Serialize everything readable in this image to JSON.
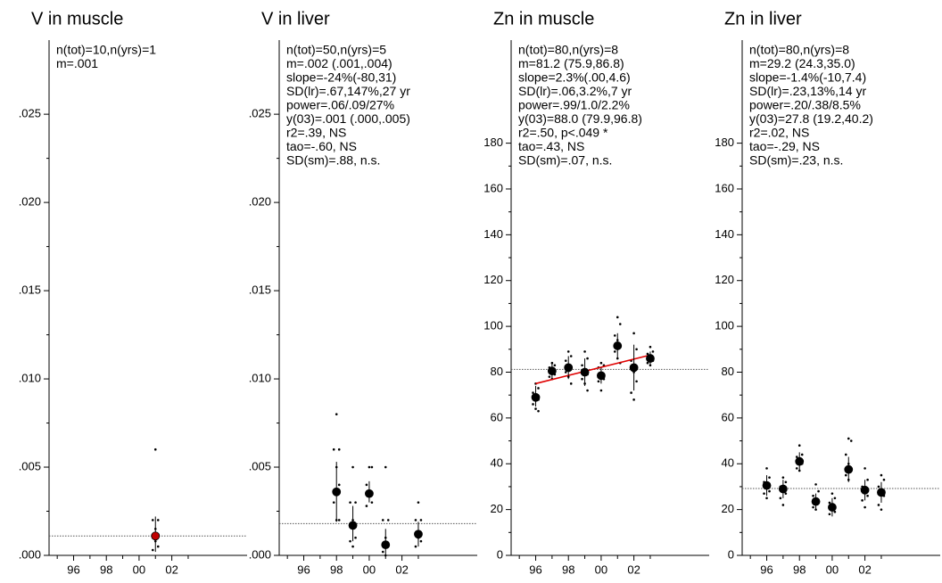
{
  "chart_data": [
    {
      "type": "scatter",
      "title": "V in muscle",
      "annotations": [
        "n(tot)=10,n(yrs)=1",
        "m=.001"
      ],
      "xlim": [
        1994.5,
        2006.6
      ],
      "ylim": [
        0,
        0.0292
      ],
      "xticks": [
        {
          "value": 1996,
          "label": "96"
        },
        {
          "value": 1998,
          "label": "98"
        },
        {
          "value": 2000,
          "label": "00"
        },
        {
          "value": 2002,
          "label": "02"
        }
      ],
      "yticks": [
        {
          "value": 0,
          "label": ".000"
        },
        {
          "value": 0.005,
          "label": ".005"
        },
        {
          "value": 0.01,
          "label": ".010"
        },
        {
          "value": 0.015,
          "label": ".015"
        },
        {
          "value": 0.02,
          "label": ".020"
        },
        {
          "value": 0.025,
          "label": ".025"
        }
      ],
      "reference": 0.0011,
      "means": {
        "color": "#c00000",
        "x": [
          2001
        ],
        "values": [
          0.0011
        ],
        "low": [
          0.0002
        ],
        "high": [
          0.0022
        ]
      },
      "points": {
        "x": [
          2001,
          2001,
          2001,
          2001,
          2001,
          2001,
          2001,
          2001,
          2001
        ],
        "y": [
          0.006,
          0.002,
          0.002,
          0.0015,
          0.0012,
          0.001,
          0.0008,
          0.0005,
          0.0003
        ]
      }
    },
    {
      "type": "scatter",
      "title": "V in liver",
      "annotations": [
        "n(tot)=50,n(yrs)=5",
        "m=.002 (.001,.004)",
        "slope=-24%(-80,31)",
        "SD(lr)=.67,147%,27 yr",
        "power=.06/.09/27%",
        "y(03)=.001 (.000,.005)",
        "r2=.39, NS",
        "tao=-.60, NS",
        "SD(sm)=.88, n.s."
      ],
      "xlim": [
        1994.5,
        2006.6
      ],
      "ylim": [
        0,
        0.0292
      ],
      "xticks": [
        {
          "value": 1996,
          "label": "96"
        },
        {
          "value": 1998,
          "label": "98"
        },
        {
          "value": 2000,
          "label": "00"
        },
        {
          "value": 2002,
          "label": "02"
        }
      ],
      "yticks": [
        {
          "value": 0,
          "label": ".000"
        },
        {
          "value": 0.005,
          "label": ".005"
        },
        {
          "value": 0.01,
          "label": ".010"
        },
        {
          "value": 0.015,
          "label": ".015"
        },
        {
          "value": 0.02,
          "label": ".020"
        },
        {
          "value": 0.025,
          "label": ".025"
        }
      ],
      "reference": 0.0018,
      "means": {
        "color": "#000000",
        "x": [
          1998,
          1999,
          2000,
          2001,
          2003
        ],
        "values": [
          0.0036,
          0.0017,
          0.0035,
          0.0006,
          0.0012
        ],
        "low": [
          0.0019,
          0.0008,
          0.003,
          0,
          0.0005
        ],
        "high": [
          0.0053,
          0.0028,
          0.0042,
          0.0015,
          0.0019
        ]
      },
      "points": {
        "x": [
          1998,
          1998,
          1998,
          1998,
          1998,
          1998,
          1998,
          1998,
          1999,
          1999,
          1999,
          1999,
          1999,
          1999,
          1999,
          2000,
          2000,
          2000,
          2000,
          2000,
          2000,
          2001,
          2001,
          2001,
          2001,
          2001,
          2001,
          2001,
          2003,
          2003,
          2003,
          2003,
          2003,
          2003
        ],
        "y": [
          0.008,
          0.006,
          0.006,
          0.005,
          0.004,
          0.003,
          0.002,
          0.002,
          0.005,
          0.003,
          0.003,
          0.002,
          0.001,
          0.0008,
          0.0005,
          0.005,
          0.005,
          0.004,
          0.0035,
          0.003,
          0.0028,
          0.005,
          0.002,
          0.002,
          0.001,
          0.0005,
          0.0002,
          0,
          0.003,
          0.002,
          0.002,
          0.001,
          0.0008,
          0.0005
        ]
      }
    },
    {
      "type": "scatter",
      "title": "Zn in muscle",
      "annotations": [
        "n(tot)=80,n(yrs)=8",
        "m=81.2 (75.9,86.8)",
        "slope=2.3%(.00,4.6)",
        "SD(lr)=.06,3.2%,7 yr",
        "power=.99/1.0/2.2%",
        "y(03)=88.0 (79.9,96.8)",
        "r2=.50, p<.049 *",
        "tao=.43, NS",
        "SD(sm)=.07, n.s."
      ],
      "xlim": [
        1994.5,
        2006.6
      ],
      "ylim": [
        0,
        225
      ],
      "xticks": [
        {
          "value": 1996,
          "label": "96"
        },
        {
          "value": 1998,
          "label": "98"
        },
        {
          "value": 2000,
          "label": "00"
        },
        {
          "value": 2002,
          "label": "02"
        }
      ],
      "yticks": [
        0,
        20,
        40,
        60,
        80,
        100,
        120,
        140,
        160,
        180
      ],
      "reference": 81.2,
      "trend": {
        "color": "#e00000",
        "x": [
          1996,
          2003
        ],
        "y": [
          75,
          87.5
        ]
      },
      "means": {
        "color": "#000000",
        "x": [
          1996,
          1997,
          1998,
          1999,
          2000,
          2001,
          2002,
          2003
        ],
        "values": [
          69,
          80.5,
          82,
          80,
          78.5,
          91.5,
          82,
          86
        ],
        "low": [
          65,
          77,
          77,
          74,
          75,
          86,
          72,
          83
        ],
        "high": [
          74,
          84,
          87,
          86,
          82,
          97,
          92,
          89
        ]
      },
      "points": {
        "x": [
          1996,
          1996,
          1996,
          1996,
          1996,
          1996,
          1996,
          1996,
          1997,
          1997,
          1997,
          1997,
          1997,
          1997,
          1997,
          1998,
          1998,
          1998,
          1998,
          1998,
          1998,
          1998,
          1998,
          1999,
          1999,
          1999,
          1999,
          1999,
          1999,
          1999,
          1999,
          2000,
          2000,
          2000,
          2000,
          2000,
          2000,
          2000,
          2001,
          2001,
          2001,
          2001,
          2001,
          2001,
          2001,
          2001,
          2002,
          2002,
          2002,
          2002,
          2002,
          2002,
          2002,
          2003,
          2003,
          2003,
          2003,
          2003,
          2003,
          2003
        ],
        "y": [
          75,
          73,
          71,
          70,
          68,
          66,
          64,
          63,
          84,
          83,
          82,
          80,
          79,
          78,
          77,
          89,
          87,
          85,
          83,
          82,
          80,
          78,
          75,
          89,
          86,
          83,
          81,
          79,
          77,
          75,
          72,
          84,
          83,
          82,
          79,
          77,
          76,
          72,
          104,
          101,
          96,
          94,
          91,
          89,
          86,
          84,
          97,
          90,
          85,
          80,
          76,
          71,
          68,
          91,
          89,
          88,
          86,
          85,
          84,
          83
        ]
      }
    },
    {
      "type": "scatter",
      "title": "Zn in liver",
      "annotations": [
        "n(tot)=80,n(yrs)=8",
        "m=29.2 (24.3,35.0)",
        "slope=-1.4%(-10,7.4)",
        "SD(lr)=.23,13%,14 yr",
        "power=.20/.38/8.5%",
        "y(03)=27.8 (19.2,40.2)",
        "r2=.02, NS",
        "tao=-.29, NS",
        "SD(sm)=.23, n.s."
      ],
      "xlim": [
        1994.5,
        2006.6
      ],
      "ylim": [
        0,
        225
      ],
      "xticks": [
        {
          "value": 1996,
          "label": "96"
        },
        {
          "value": 1998,
          "label": "98"
        },
        {
          "value": 2000,
          "label": "00"
        },
        {
          "value": 2002,
          "label": "02"
        }
      ],
      "yticks": [
        0,
        20,
        40,
        60,
        80,
        100,
        120,
        140,
        160,
        180
      ],
      "reference": 29.2,
      "means": {
        "color": "#000000",
        "x": [
          1996,
          1997,
          1998,
          1999,
          2000,
          2001,
          2002,
          2003
        ],
        "values": [
          30.5,
          29,
          41,
          23.5,
          21,
          37.5,
          28.5,
          27.5
        ],
        "low": [
          26,
          25,
          37,
          20,
          17,
          32,
          24,
          23
        ],
        "high": [
          35,
          33,
          45,
          27,
          25,
          43,
          33,
          32
        ]
      },
      "points": {
        "x": [
          1996,
          1996,
          1996,
          1996,
          1996,
          1996,
          1996,
          1997,
          1997,
          1997,
          1997,
          1997,
          1997,
          1997,
          1998,
          1998,
          1998,
          1998,
          1998,
          1998,
          1998,
          1999,
          1999,
          1999,
          1999,
          1999,
          1999,
          1999,
          2000,
          2000,
          2000,
          2000,
          2000,
          2000,
          2001,
          2001,
          2001,
          2001,
          2001,
          2001,
          2001,
          2002,
          2002,
          2002,
          2002,
          2002,
          2002,
          2002,
          2003,
          2003,
          2003,
          2003,
          2003,
          2003,
          2003
        ],
        "y": [
          38,
          34,
          32,
          30,
          28,
          27,
          25,
          34,
          32,
          30,
          29,
          27,
          25,
          22,
          48,
          44,
          43,
          41,
          40,
          38,
          37,
          31,
          28,
          26,
          24,
          23,
          21,
          20,
          27,
          25,
          23,
          20,
          19,
          18,
          51,
          50,
          44,
          40,
          37,
          35,
          33,
          38,
          33,
          30,
          28,
          26,
          24,
          21,
          35,
          33,
          30,
          28,
          26,
          22,
          20
        ]
      }
    }
  ]
}
